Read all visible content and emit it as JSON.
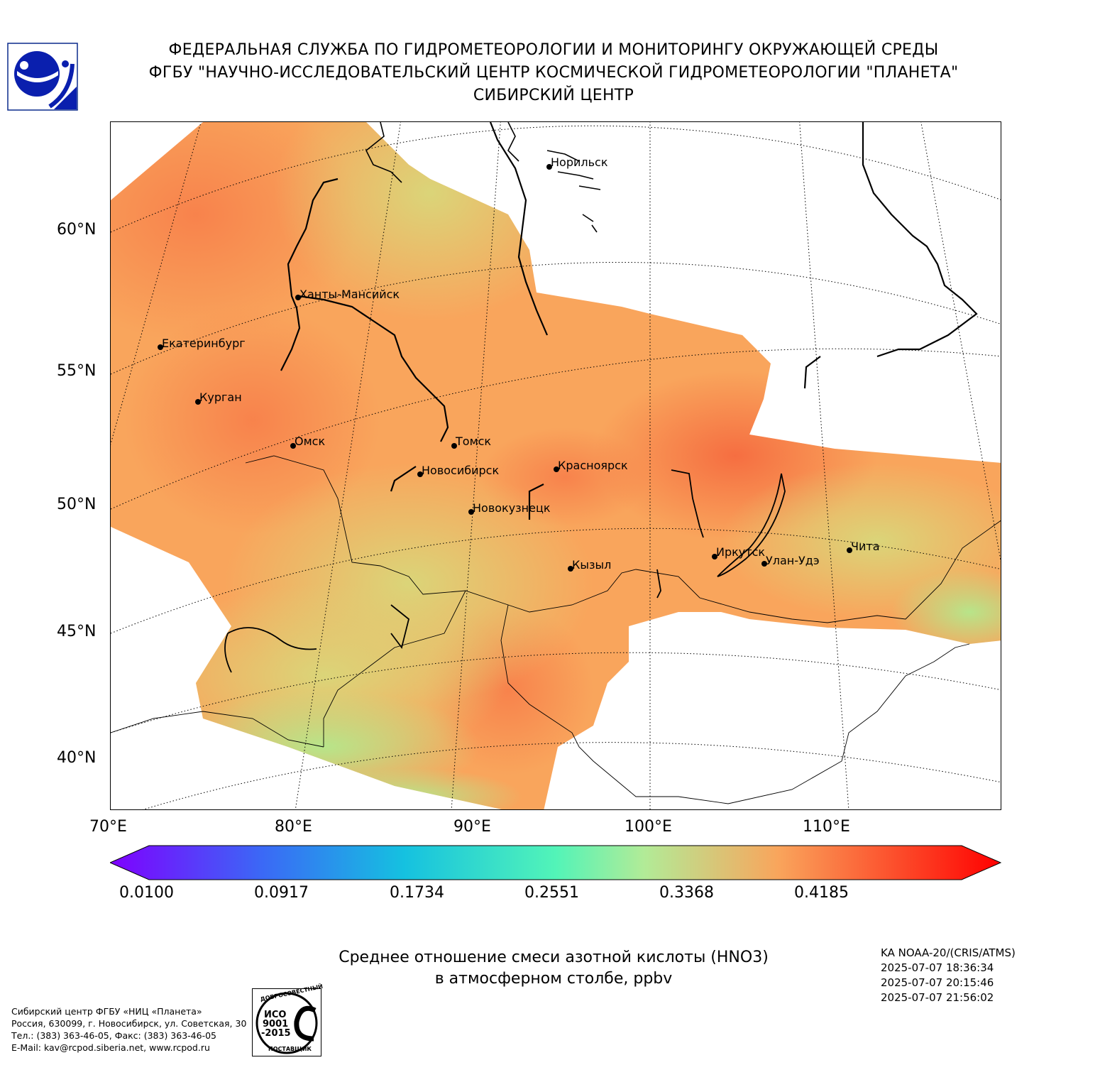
{
  "header": {
    "line1": "ФЕДЕРАЛЬНАЯ СЛУЖБА ПО ГИДРОМЕТЕОРОЛОГИИ И МОНИТОРИНГУ ОКРУЖАЮЩЕЙ СРЕДЫ",
    "line2": "ФГБУ \"НАУЧНО-ИССЛЕДОВАТЕЛЬСКИЙ ЦЕНТР КОСМИЧЕСКОЙ ГИДРОМЕТЕОРОЛОГИИ \"ПЛАНЕТА\"",
    "line3": "СИБИРСКИЙ ЦЕНТР"
  },
  "map": {
    "lat_labels": [
      "60°N",
      "55°N",
      "50°N",
      "45°N",
      "40°N"
    ],
    "lon_labels": [
      "70°E",
      "80°E",
      "90°E",
      "100°E",
      "110°E"
    ],
    "cities": [
      {
        "name": "Норильск"
      },
      {
        "name": "Ханты-Мансийск"
      },
      {
        "name": "Екатеринбург"
      },
      {
        "name": "Курган"
      },
      {
        "name": "Омск"
      },
      {
        "name": "Томск"
      },
      {
        "name": "Новосибирск"
      },
      {
        "name": "Красноярск"
      },
      {
        "name": "Новокузнецк"
      },
      {
        "name": "Иркутск"
      },
      {
        "name": "Улан-Удэ"
      },
      {
        "name": "Чита"
      },
      {
        "name": "Кызыл"
      }
    ]
  },
  "colorbar": {
    "ticks": [
      "0.0100",
      "0.0917",
      "0.1734",
      "0.2551",
      "0.3368",
      "0.4185"
    ],
    "colors": [
      "#7f00ff",
      "#3b68f6",
      "#15c1e0",
      "#52f4b8",
      "#b2eb97",
      "#f9a55c",
      "#ff0000"
    ]
  },
  "title": {
    "line1": "Среднее отношение смеси азотной кислоты (HNO3)",
    "line2": "в атмосферном столбе, ppbv"
  },
  "satellite": {
    "name": "KA NOAA-20/(CRIS/ATMS)",
    "times": [
      "2025-07-07 18:36:34",
      "2025-07-07 20:15:46",
      "2025-07-07 21:56:02"
    ]
  },
  "footer": {
    "org": "Сибирский центр ФГБУ «НИЦ «Планета»",
    "address": "Россия, 630099, г. Новосибирск, ул. Советская, 30",
    "phone": "Тел.: (383) 363-46-05, Факс: (383) 363-46-05",
    "email": "E-Mail: kav@rcpod.siberia.net, www.rcpod.ru"
  },
  "iso_badge": {
    "top": "ДОБРОСОВЕСТНЫЙ",
    "l1": "ИСО",
    "l2": "9001",
    "l3": "-2015",
    "bottom": "ПОСТАВЩИК"
  }
}
